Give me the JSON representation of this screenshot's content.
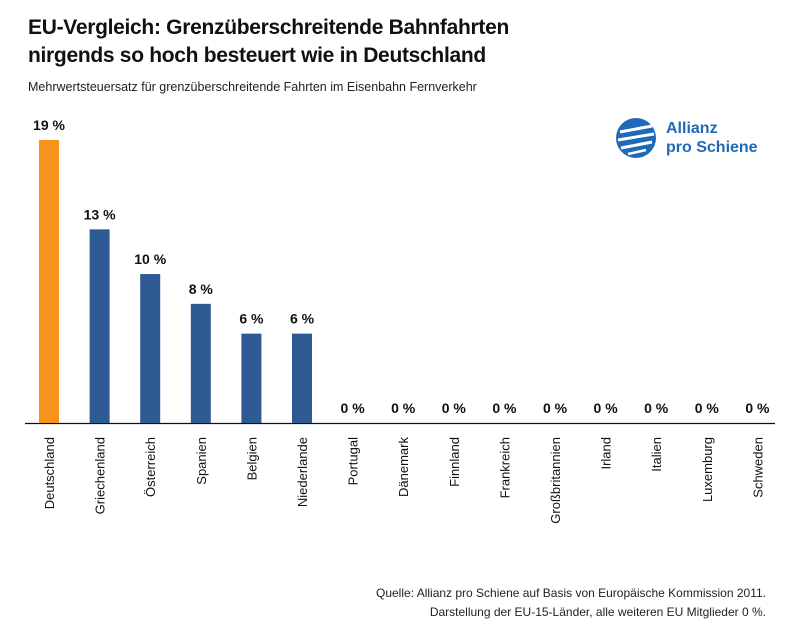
{
  "chart_data": {
    "type": "bar",
    "title_line1": "EU-Vergleich: Grenzüberschreitende Bahnfahrten",
    "title_line2": "nirgends so hoch besteuert wie in Deutschland",
    "subtitle": "Mehrwertsteuersatz für grenzüberschreitende Fahrten im Eisenbahn Fernverkehr",
    "categories": [
      "Deutschland",
      "Griechenland",
      "Österreich",
      "Spanien",
      "Belgien",
      "Niederlande",
      "Portugal",
      "Dänemark",
      "Finnland",
      "Frankreich",
      "Großbritannien",
      "Irland",
      "Italien",
      "Luxemburg",
      "Schweden"
    ],
    "values": [
      19,
      13,
      10,
      8,
      6,
      6,
      0,
      0,
      0,
      0,
      0,
      0,
      0,
      0,
      0
    ],
    "value_labels": [
      "19 %",
      "13 %",
      "10 %",
      "8 %",
      "6 %",
      "6 %",
      "0 %",
      "0 %",
      "0 %",
      "0 %",
      "0 %",
      "0 %",
      "0 %",
      "0 %",
      "0 %"
    ],
    "highlight_color": "#f7941e",
    "bar_color": "#2e5a94",
    "ylim": [
      0,
      19
    ]
  },
  "logo": {
    "line1": "Allianz",
    "line2": "pro Schiene",
    "color": "#1f6ab8"
  },
  "source": {
    "line1": "Quelle: Allianz pro Schiene auf Basis von Europäische Kommission 2011.",
    "line2": "Darstellung der EU-15-Länder, alle weiteren EU Mitglieder  0 %."
  }
}
